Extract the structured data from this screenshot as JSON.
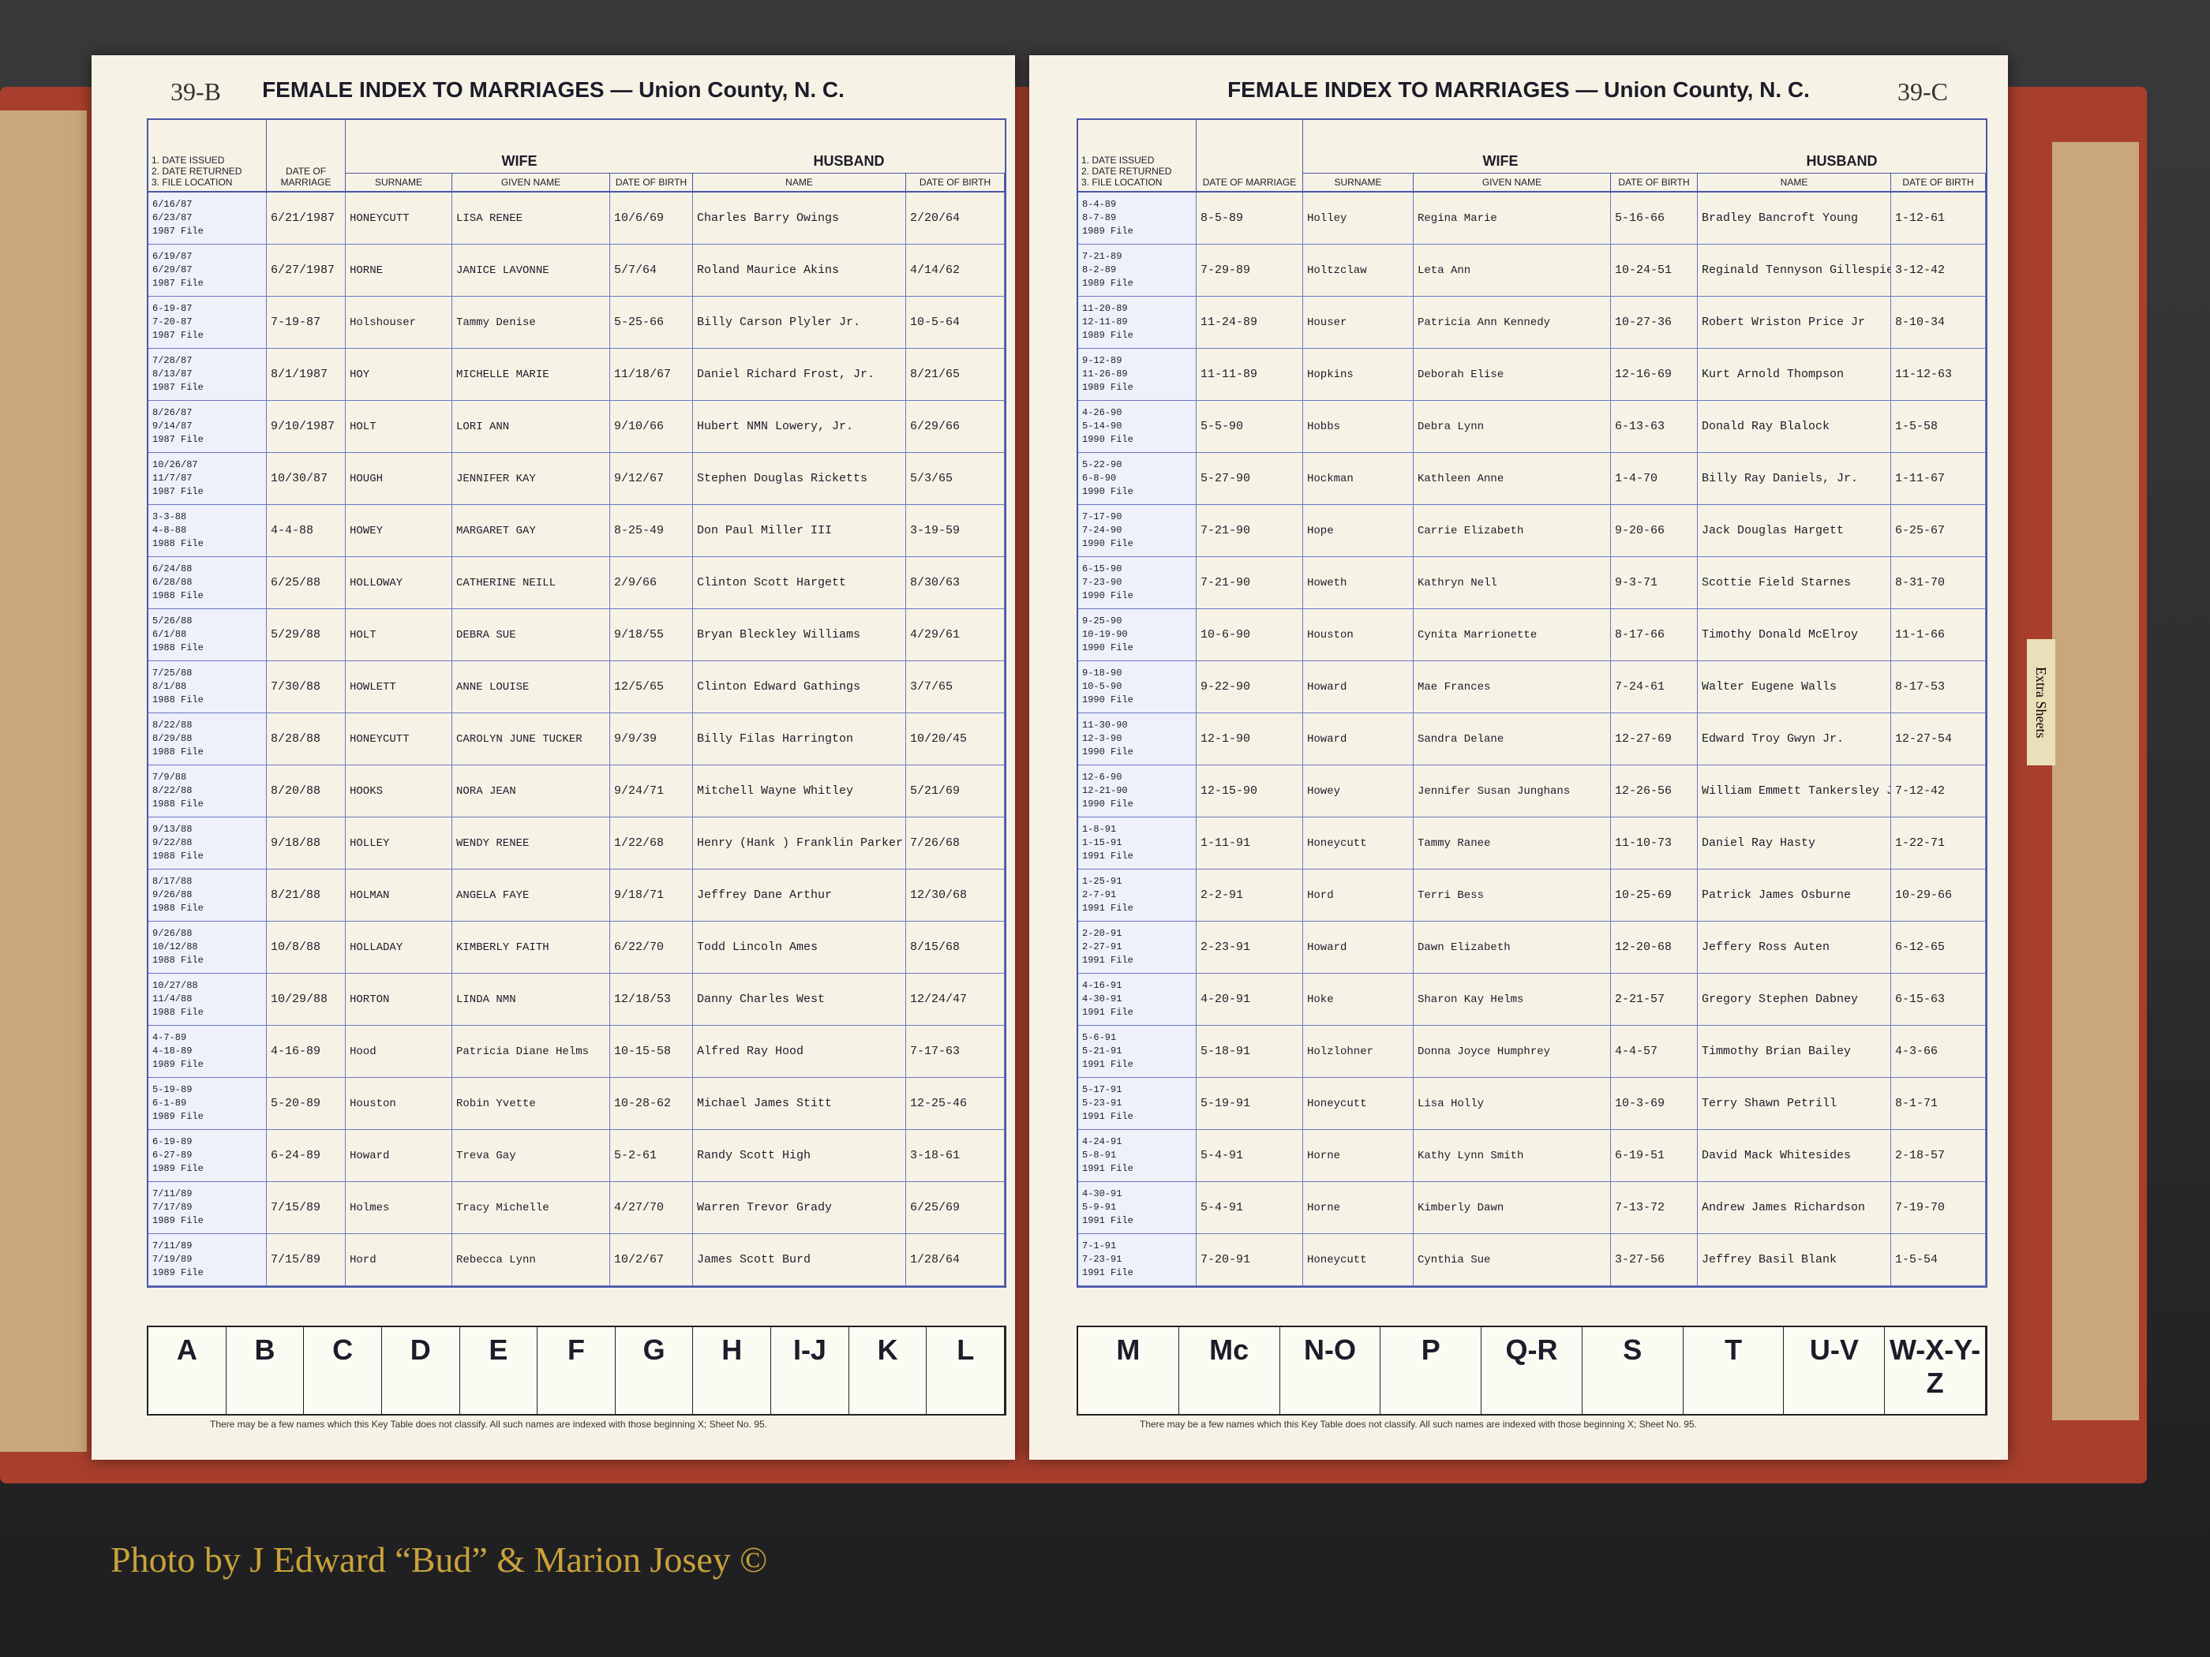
{
  "pages": [
    {
      "page_number": "39-B",
      "title": "FEMALE INDEX TO MARRIAGES — Union County, N. C.",
      "headers": {
        "file": [
          "1. DATE ISSUED",
          "2. DATE RETURNED",
          "3. FILE LOCATION"
        ],
        "marriage": "DATE OF MARRIAGE",
        "wife": "WIFE",
        "surname": "SURNAME",
        "given": "GIVEN NAME",
        "wife_dob": "DATE OF BIRTH",
        "husband": "HUSBAND",
        "husband_name": "NAME",
        "husband_dob": "DATE OF BIRTH"
      },
      "rows": [
        {
          "file": [
            "6/16/87",
            "6/23/87",
            "1987 File"
          ],
          "marriage": "6/21/1987",
          "surname": "HONEYCUTT",
          "given": "LISA RENEE",
          "wife_dob": "10/6/69",
          "husband": "Charles Barry Owings",
          "husband_dob": "2/20/64"
        },
        {
          "file": [
            "6/19/87",
            "6/29/87",
            "1987 File"
          ],
          "marriage": "6/27/1987",
          "surname": "HORNE",
          "given": "JANICE LAVONNE",
          "wife_dob": "5/7/64",
          "husband": "Roland Maurice Akins",
          "husband_dob": "4/14/62"
        },
        {
          "file": [
            "6-19-87",
            "7-20-87",
            "1987 File"
          ],
          "marriage": "7-19-87",
          "surname": "Holshouser",
          "given": "Tammy Denise",
          "wife_dob": "5-25-66",
          "husband": "Billy Carson Plyler Jr.",
          "husband_dob": "10-5-64"
        },
        {
          "file": [
            "7/28/87",
            "8/13/87",
            "1987 File"
          ],
          "marriage": "8/1/1987",
          "surname": "HOY",
          "given": "MICHELLE MARIE",
          "wife_dob": "11/18/67",
          "husband": "Daniel Richard Frost, Jr.",
          "husband_dob": "8/21/65"
        },
        {
          "file": [
            "8/26/87",
            "9/14/87",
            "1987 File"
          ],
          "marriage": "9/10/1987",
          "surname": "HOLT",
          "given": "LORI ANN",
          "wife_dob": "9/10/66",
          "husband": "Hubert NMN Lowery, Jr.",
          "husband_dob": "6/29/66"
        },
        {
          "file": [
            "10/26/87",
            "11/7/87",
            "1987 File"
          ],
          "marriage": "10/30/87",
          "surname": "HOUGH",
          "given": "JENNIFER KAY",
          "wife_dob": "9/12/67",
          "husband": "Stephen Douglas Ricketts",
          "husband_dob": "5/3/65"
        },
        {
          "file": [
            "3-3-88",
            "4-8-88",
            "1988 File"
          ],
          "marriage": "4-4-88",
          "surname": "HOWEY",
          "given": "MARGARET GAY",
          "wife_dob": "8-25-49",
          "husband": "Don Paul Miller III",
          "husband_dob": "3-19-59"
        },
        {
          "file": [
            "6/24/88",
            "6/28/88",
            "1988 File"
          ],
          "marriage": "6/25/88",
          "surname": "HOLLOWAY",
          "given": "CATHERINE NEILL",
          "wife_dob": "2/9/66",
          "husband": "Clinton Scott Hargett",
          "husband_dob": "8/30/63"
        },
        {
          "file": [
            "5/26/88",
            "6/1/88",
            "1988 File"
          ],
          "marriage": "5/29/88",
          "surname": "HOLT",
          "given": "DEBRA SUE",
          "wife_dob": "9/18/55",
          "husband": "Bryan Bleckley Williams",
          "husband_dob": "4/29/61"
        },
        {
          "file": [
            "7/25/88",
            "8/1/88",
            "1988 File"
          ],
          "marriage": "7/30/88",
          "surname": "HOWLETT",
          "given": "ANNE LOUISE",
          "wife_dob": "12/5/65",
          "husband": "Clinton Edward Gathings",
          "husband_dob": "3/7/65"
        },
        {
          "file": [
            "8/22/88",
            "8/29/88",
            "1988 File"
          ],
          "marriage": "8/28/88",
          "surname": "HONEYCUTT",
          "given": "CAROLYN JUNE TUCKER",
          "wife_dob": "9/9/39",
          "husband": "Billy Filas Harrington",
          "husband_dob": "10/20/45"
        },
        {
          "file": [
            "7/9/88",
            "8/22/88",
            "1988 File"
          ],
          "marriage": "8/20/88",
          "surname": "HOOKS",
          "given": "NORA JEAN",
          "wife_dob": "9/24/71",
          "husband": "Mitchell Wayne Whitley",
          "husband_dob": "5/21/69"
        },
        {
          "file": [
            "9/13/88",
            "9/22/88",
            "1988 File"
          ],
          "marriage": "9/18/88",
          "surname": "HOLLEY",
          "given": "WENDY RENEE",
          "wife_dob": "1/22/68",
          "husband": "Henry (Hank ) Franklin Parker Jr.",
          "husband_dob": "7/26/68"
        },
        {
          "file": [
            "8/17/88",
            "9/26/88",
            "1988 File"
          ],
          "marriage": "8/21/88",
          "surname": "HOLMAN",
          "given": "ANGELA FAYE",
          "wife_dob": "9/18/71",
          "husband": "Jeffrey Dane Arthur",
          "husband_dob": "12/30/68"
        },
        {
          "file": [
            "9/26/88",
            "10/12/88",
            "1988 File"
          ],
          "marriage": "10/8/88",
          "surname": "HOLLADAY",
          "given": "KIMBERLY FAITH",
          "wife_dob": "6/22/70",
          "husband": "Todd Lincoln Ames",
          "husband_dob": "8/15/68"
        },
        {
          "file": [
            "10/27/88",
            "11/4/88",
            "1988 File"
          ],
          "marriage": "10/29/88",
          "surname": "HORTON",
          "given": "LINDA NMN",
          "wife_dob": "12/18/53",
          "husband": "Danny Charles West",
          "husband_dob": "12/24/47"
        },
        {
          "file": [
            "4-7-89",
            "4-18-89",
            "1989 File"
          ],
          "marriage": "4-16-89",
          "surname": "Hood",
          "given": "Patricia Diane Helms",
          "wife_dob": "10-15-58",
          "husband": "Alfred Ray Hood",
          "husband_dob": "7-17-63"
        },
        {
          "file": [
            "5-19-89",
            "6-1-89",
            "1989 File"
          ],
          "marriage": "5-20-89",
          "surname": "Houston",
          "given": "Robin Yvette",
          "wife_dob": "10-28-62",
          "husband": "Michael James Stitt",
          "husband_dob": "12-25-46"
        },
        {
          "file": [
            "6-19-89",
            "6-27-89",
            "1989 File"
          ],
          "marriage": "6-24-89",
          "surname": "Howard",
          "given": "Treva Gay",
          "wife_dob": "5-2-61",
          "husband": "Randy Scott High",
          "husband_dob": "3-18-61"
        },
        {
          "file": [
            "7/11/89",
            "7/17/89",
            "1989 File"
          ],
          "marriage": "7/15/89",
          "surname": "Holmes",
          "given": "Tracy Michelle",
          "wife_dob": "4/27/70",
          "husband": "Warren Trevor Grady",
          "husband_dob": "6/25/69"
        },
        {
          "file": [
            "7/11/89",
            "7/19/89",
            "1989 File"
          ],
          "marriage": "7/15/89",
          "surname": "Hord",
          "given": "Rebecca Lynn",
          "wife_dob": "10/2/67",
          "husband": "James Scott Burd",
          "husband_dob": "1/28/64"
        }
      ],
      "key_letters": [
        "A",
        "B",
        "C",
        "D",
        "E",
        "F",
        "G",
        "H",
        "I-J",
        "K",
        "L"
      ],
      "key_note": "There may be a few names which this Key Table does not classify. All such names are indexed with those beginning X; Sheet No. 95."
    },
    {
      "page_number": "39-C",
      "title": "FEMALE INDEX TO MARRIAGES — Union County, N. C.",
      "headers": {
        "file": [
          "1. DATE ISSUED",
          "2. DATE RETURNED",
          "3. FILE LOCATION"
        ],
        "marriage": "DATE OF MARRIAGE",
        "wife": "WIFE",
        "surname": "SURNAME",
        "given": "GIVEN NAME",
        "wife_dob": "DATE OF BIRTH",
        "husband": "HUSBAND",
        "husband_name": "NAME",
        "husband_dob": "DATE OF BIRTH"
      },
      "rows": [
        {
          "file": [
            "8-4-89",
            "8-7-89",
            "1989 File"
          ],
          "marriage": "8-5-89",
          "surname": "Holley",
          "given": "Regina Marie",
          "wife_dob": "5-16-66",
          "husband": "Bradley Bancroft Young",
          "husband_dob": "1-12-61"
        },
        {
          "file": [
            "7-21-89",
            "8-2-89",
            "1989 File"
          ],
          "marriage": "7-29-89",
          "surname": "Holtzclaw",
          "given": "Leta Ann",
          "wife_dob": "10-24-51",
          "husband": "Reginald Tennyson Gillespie",
          "husband_dob": "3-12-42"
        },
        {
          "file": [
            "11-20-89",
            "12-11-89",
            "1989 File"
          ],
          "marriage": "11-24-89",
          "surname": "Houser",
          "given": "Patricia Ann Kennedy",
          "wife_dob": "10-27-36",
          "husband": "Robert Wriston Price Jr",
          "husband_dob": "8-10-34"
        },
        {
          "file": [
            "9-12-89",
            "11-26-89",
            "1989 File"
          ],
          "marriage": "11-11-89",
          "surname": "Hopkins",
          "given": "Deborah Elise",
          "wife_dob": "12-16-69",
          "husband": "Kurt Arnold Thompson",
          "husband_dob": "11-12-63"
        },
        {
          "file": [
            "4-26-90",
            "5-14-90",
            "1990 File"
          ],
          "marriage": "5-5-90",
          "surname": "Hobbs",
          "given": "Debra Lynn",
          "wife_dob": "6-13-63",
          "husband": "Donald Ray Blalock",
          "husband_dob": "1-5-58"
        },
        {
          "file": [
            "5-22-90",
            "6-8-90",
            "1990 File"
          ],
          "marriage": "5-27-90",
          "surname": "Hockman",
          "given": "Kathleen Anne",
          "wife_dob": "1-4-70",
          "husband": "Billy Ray Daniels, Jr.",
          "husband_dob": "1-11-67"
        },
        {
          "file": [
            "7-17-90",
            "7-24-90",
            "1990 File"
          ],
          "marriage": "7-21-90",
          "surname": "Hope",
          "given": "Carrie Elizabeth",
          "wife_dob": "9-20-66",
          "husband": "Jack Douglas Hargett",
          "husband_dob": "6-25-67"
        },
        {
          "file": [
            "6-15-90",
            "7-23-90",
            "1990 File"
          ],
          "marriage": "7-21-90",
          "surname": "Howeth",
          "given": "Kathryn Nell",
          "wife_dob": "9-3-71",
          "husband": "Scottie Field Starnes",
          "husband_dob": "8-31-70"
        },
        {
          "file": [
            "9-25-90",
            "10-19-90",
            "1990 File"
          ],
          "marriage": "10-6-90",
          "surname": "Houston",
          "given": "Cynita Marrionette",
          "wife_dob": "8-17-66",
          "husband": "Timothy Donald McElroy",
          "husband_dob": "11-1-66"
        },
        {
          "file": [
            "9-18-90",
            "10-5-90",
            "1990 File"
          ],
          "marriage": "9-22-90",
          "surname": "Howard",
          "given": "Mae Frances",
          "wife_dob": "7-24-61",
          "husband": "Walter Eugene Walls",
          "husband_dob": "8-17-53"
        },
        {
          "file": [
            "11-30-90",
            "12-3-90",
            "1990 File"
          ],
          "marriage": "12-1-90",
          "surname": "Howard",
          "given": "Sandra Delane",
          "wife_dob": "12-27-69",
          "husband": "Edward Troy Gwyn Jr.",
          "husband_dob": "12-27-54"
        },
        {
          "file": [
            "12-6-90",
            "12-21-90",
            "1990 File"
          ],
          "marriage": "12-15-90",
          "surname": "Howey",
          "given": "Jennifer Susan Junghans",
          "wife_dob": "12-26-56",
          "husband": "William Emmett Tankersley Jr.",
          "husband_dob": "7-12-42"
        },
        {
          "file": [
            "1-8-91",
            "1-15-91",
            "1991 File"
          ],
          "marriage": "1-11-91",
          "surname": "Honeycutt",
          "given": "Tammy Ranee",
          "wife_dob": "11-10-73",
          "husband": "Daniel Ray Hasty",
          "husband_dob": "1-22-71"
        },
        {
          "file": [
            "1-25-91",
            "2-7-91",
            "1991 File"
          ],
          "marriage": "2-2-91",
          "surname": "Hord",
          "given": "Terri Bess",
          "wife_dob": "10-25-69",
          "husband": "Patrick James Osburne",
          "husband_dob": "10-29-66"
        },
        {
          "file": [
            "2-20-91",
            "2-27-91",
            "1991 File"
          ],
          "marriage": "2-23-91",
          "surname": "Howard",
          "given": "Dawn Elizabeth",
          "wife_dob": "12-20-68",
          "husband": "Jeffery Ross Auten",
          "husband_dob": "6-12-65"
        },
        {
          "file": [
            "4-16-91",
            "4-30-91",
            "1991 File"
          ],
          "marriage": "4-20-91",
          "surname": "Hoke",
          "given": "Sharon Kay Helms",
          "wife_dob": "2-21-57",
          "husband": "Gregory Stephen Dabney",
          "husband_dob": "6-15-63"
        },
        {
          "file": [
            "5-6-91",
            "5-21-91",
            "1991 File"
          ],
          "marriage": "5-18-91",
          "surname": "Holzlohner",
          "given": "Donna Joyce Humphrey",
          "wife_dob": "4-4-57",
          "husband": "Timmothy Brian Bailey",
          "husband_dob": "4-3-66"
        },
        {
          "file": [
            "5-17-91",
            "5-23-91",
            "1991 File"
          ],
          "marriage": "5-19-91",
          "surname": "Honeycutt",
          "given": "Lisa Holly",
          "wife_dob": "10-3-69",
          "husband": "Terry Shawn Petrill",
          "husband_dob": "8-1-71"
        },
        {
          "file": [
            "4-24-91",
            "5-8-91",
            "1991 File"
          ],
          "marriage": "5-4-91",
          "surname": "Horne",
          "given": "Kathy Lynn Smith",
          "wife_dob": "6-19-51",
          "husband": "David Mack Whitesides",
          "husband_dob": "2-18-57"
        },
        {
          "file": [
            "4-30-91",
            "5-9-91",
            "1991 File"
          ],
          "marriage": "5-4-91",
          "surname": "Horne",
          "given": "Kimberly Dawn",
          "wife_dob": "7-13-72",
          "husband": "Andrew James Richardson",
          "husband_dob": "7-19-70"
        },
        {
          "file": [
            "7-1-91",
            "7-23-91",
            "1991 File"
          ],
          "marriage": "7-20-91",
          "surname": "Honeycutt",
          "given": "Cynthia Sue",
          "wife_dob": "3-27-56",
          "husband": "Jeffrey Basil Blank",
          "husband_dob": "1-5-54"
        }
      ],
      "key_letters": [
        "M",
        "Mc",
        "N-O",
        "P",
        "Q-R",
        "S",
        "T",
        "U-V",
        "W-X-Y-Z"
      ],
      "key_note": "There may be a few names which this Key Table does not classify. All such names are indexed with those beginning X; Sheet No. 95."
    }
  ],
  "tab": "Extra Sheets",
  "credit": "Photo by J Edward “Bud” & Marion Josey ©"
}
